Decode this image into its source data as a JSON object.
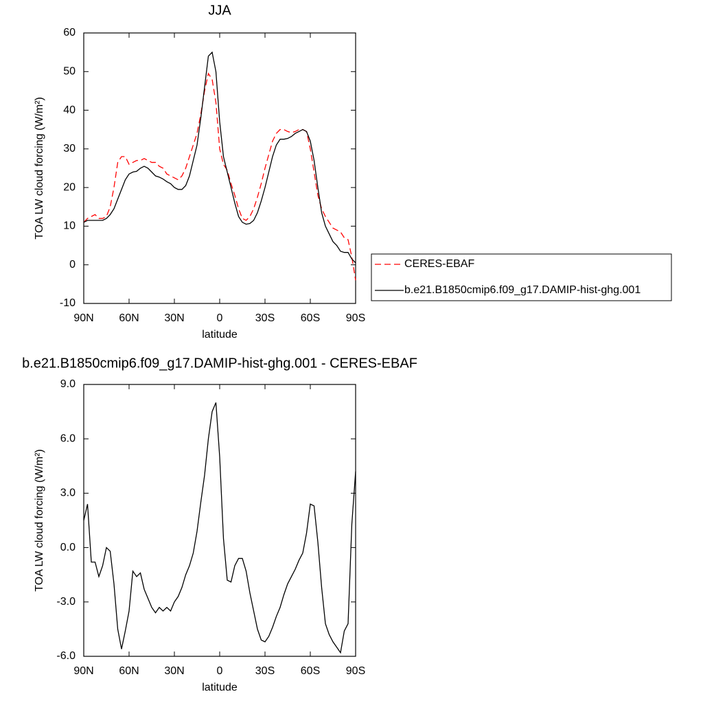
{
  "chart_data": [
    {
      "type": "line",
      "title": "JJA",
      "x_label": "latitude",
      "y_label": "TOA LW cloud forcing (W/m²)",
      "x": [
        90,
        87.5,
        85,
        82.5,
        80,
        77.5,
        75,
        72.5,
        70,
        67.5,
        65,
        62.5,
        60,
        57.5,
        55,
        52.5,
        50,
        47.5,
        45,
        42.5,
        40,
        37.5,
        35,
        32.5,
        30,
        27.5,
        25,
        22.5,
        20,
        17.5,
        15,
        12.5,
        10,
        7.5,
        5,
        2.5,
        0,
        -2.5,
        -5,
        -7.5,
        -10,
        -12.5,
        -15,
        -17.5,
        -20,
        -22.5,
        -25,
        -27.5,
        -30,
        -32.5,
        -35,
        -37.5,
        -40,
        -42.5,
        -45,
        -47.5,
        -50,
        -52.5,
        -55,
        -57.5,
        -60,
        -62.5,
        -65,
        -67.5,
        -70,
        -72.5,
        -75,
        -77.5,
        -80,
        -82.5,
        -85,
        -87.5,
        -90
      ],
      "series": [
        {
          "name": "CERES-EBAF",
          "color": "#ff0000",
          "linestyle": "dashed",
          "values": [
            11,
            12,
            12.5,
            13,
            12,
            12,
            12.5,
            15,
            20,
            26.5,
            28,
            28,
            26,
            26.5,
            27,
            27,
            27.5,
            27,
            26.5,
            26.5,
            25.5,
            25,
            23.5,
            23,
            22.5,
            22,
            23,
            25,
            28,
            31,
            34,
            39,
            45,
            49.5,
            48,
            42,
            30,
            26,
            24.5,
            21,
            18,
            14.5,
            12,
            11.5,
            12.5,
            14.5,
            17.5,
            21,
            25,
            28.5,
            32,
            34,
            35,
            35,
            34.5,
            34.2,
            34.5,
            35,
            35,
            34.5,
            30,
            24,
            18,
            14.5,
            12.5,
            11,
            9.5,
            9,
            8.5,
            7,
            6.5,
            2,
            -4
          ]
        },
        {
          "name": "b.e21.B1850cmip6.f09_g17.DAMIP-hist-ghg.001",
          "color": "#000000",
          "linestyle": "solid",
          "values": [
            11,
            11.5,
            11.5,
            11.5,
            11.5,
            11.5,
            12,
            13,
            14.5,
            17,
            19.5,
            22,
            23.5,
            24,
            24.2,
            25,
            25.5,
            25,
            24,
            23,
            22.7,
            22.2,
            21.5,
            21,
            20,
            19.5,
            19.5,
            20.5,
            23,
            27,
            31,
            38,
            46,
            54,
            55,
            50,
            37,
            28,
            24,
            20,
            16,
            12.5,
            11,
            10.5,
            10.7,
            11.5,
            13.5,
            16.5,
            20,
            24,
            28,
            31,
            32.5,
            32.5,
            32.7,
            33.2,
            34,
            34.5,
            35,
            34.5,
            32,
            27,
            20,
            13.5,
            10,
            8,
            6,
            5,
            3.5,
            3.2,
            3.2,
            1.5,
            0.5
          ]
        }
      ],
      "xlim": [
        90,
        -90
      ],
      "xticks": [
        {
          "value": 90,
          "label": "90N"
        },
        {
          "value": 60,
          "label": "60N"
        },
        {
          "value": 30,
          "label": "30N"
        },
        0,
        {
          "value": -30,
          "label": "30S"
        },
        {
          "value": -60,
          "label": "60S"
        },
        {
          "value": -90,
          "label": "90S"
        }
      ],
      "ylim": [
        -10,
        60
      ],
      "yticks": [
        -10,
        0,
        10,
        20,
        30,
        40,
        50,
        60
      ],
      "legend": "outside right"
    },
    {
      "type": "line",
      "title": "b.e21.B1850cmip6.f09_g17.DAMIP-hist-ghg.001 - CERES-EBAF",
      "x_label": "latitude",
      "y_label": "TOA LW cloud forcing (W/m²)",
      "x": [
        90,
        87.5,
        85,
        82.5,
        80,
        77.5,
        75,
        72.5,
        70,
        67.5,
        65,
        62.5,
        60,
        57.5,
        55,
        52.5,
        50,
        47.5,
        45,
        42.5,
        40,
        37.5,
        35,
        32.5,
        30,
        27.5,
        25,
        22.5,
        20,
        17.5,
        15,
        12.5,
        10,
        7.5,
        5,
        2.5,
        0,
        -2.5,
        -5,
        -7.5,
        -10,
        -12.5,
        -15,
        -17.5,
        -20,
        -22.5,
        -25,
        -27.5,
        -30,
        -32.5,
        -35,
        -37.5,
        -40,
        -42.5,
        -45,
        -47.5,
        -50,
        -52.5,
        -55,
        -57.5,
        -60,
        -62.5,
        -65,
        -67.5,
        -70,
        -72.5,
        -75,
        -77.5,
        -80,
        -82.5,
        -85,
        -87.5,
        -90
      ],
      "color": "#000000",
      "values": [
        1.5,
        2.4,
        -0.8,
        -0.8,
        -1.6,
        -1.0,
        0.0,
        -0.2,
        -2,
        -4.5,
        -5.6,
        -4.6,
        -3.5,
        -1.3,
        -1.6,
        -1.4,
        -2.3,
        -2.8,
        -3.3,
        -3.6,
        -3.3,
        -3.5,
        -3.3,
        -3.5,
        -3.0,
        -2.7,
        -2.2,
        -1.5,
        -1,
        -0.3,
        0.9,
        2.5,
        4,
        6,
        7.5,
        8,
        5,
        0.5,
        -1.8,
        -1.9,
        -1,
        -0.6,
        -0.6,
        -1.3,
        -2.5,
        -3.5,
        -4.5,
        -5.1,
        -5.2,
        -4.9,
        -4.4,
        -3.8,
        -3.3,
        -2.6,
        -2,
        -1.6,
        -1.2,
        -0.7,
        -0.3,
        0.8,
        2.4,
        2.3,
        0.3,
        -2.2,
        -4.2,
        -4.8,
        -5.2,
        -5.5,
        -5.8,
        -4.6,
        -4.2,
        1.3,
        4.2
      ],
      "xlim": [
        90,
        -90
      ],
      "xticks": [
        {
          "value": 90,
          "label": "90N"
        },
        {
          "value": 60,
          "label": "60N"
        },
        {
          "value": 30,
          "label": "30N"
        },
        0,
        {
          "value": -30,
          "label": "30S"
        },
        {
          "value": -60,
          "label": "60S"
        },
        {
          "value": -90,
          "label": "90S"
        }
      ],
      "ylim": [
        -6,
        9
      ],
      "yticks": [
        {
          "value": -6,
          "label": "-6.0"
        },
        {
          "value": -3,
          "label": "-3.0"
        },
        {
          "value": 0,
          "label": "0.0"
        },
        {
          "value": 3,
          "label": "3.0"
        },
        {
          "value": 6,
          "label": "6.0"
        },
        {
          "value": 9,
          "label": "9.0"
        }
      ]
    }
  ]
}
